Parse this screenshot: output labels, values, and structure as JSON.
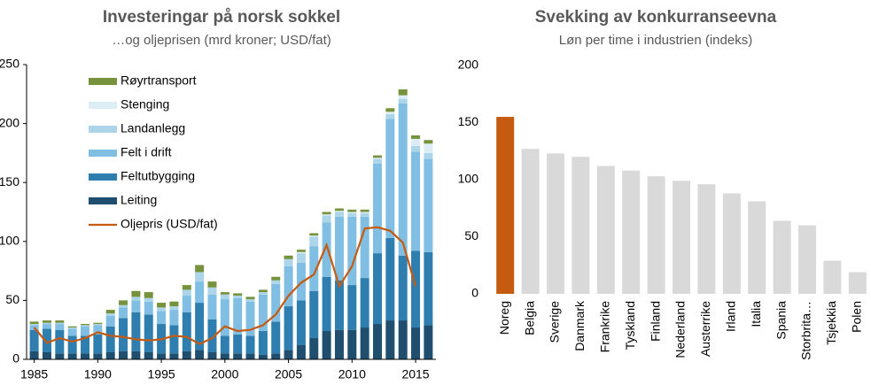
{
  "chart_data": [
    {
      "type": "bar",
      "stacked": true,
      "title": "Investeringar på norsk sokkel",
      "subtitle": "…og oljeprisen (mrd kroner; USD/fat)",
      "x": [
        1985,
        1986,
        1987,
        1988,
        1989,
        1990,
        1991,
        1992,
        1993,
        1994,
        1995,
        1996,
        1997,
        1998,
        1999,
        2000,
        2001,
        2002,
        2003,
        2004,
        2005,
        2006,
        2007,
        2008,
        2009,
        2010,
        2011,
        2012,
        2013,
        2014,
        2015,
        2016
      ],
      "xlim": [
        1984.4,
        2016.6
      ],
      "xticks": [
        1985,
        1990,
        1995,
        2000,
        2005,
        2010,
        2015
      ],
      "ylim": [
        0,
        250
      ],
      "yticks": [
        0,
        50,
        100,
        150,
        200,
        250
      ],
      "legend": "upper left",
      "series": [
        {
          "name": "Leiting",
          "color": "#1f4e6e",
          "values": [
            7,
            6,
            5,
            5,
            5,
            5,
            6,
            7,
            7,
            6,
            5,
            5,
            7,
            8,
            6,
            5,
            5,
            5,
            4,
            5,
            8,
            12,
            18,
            24,
            25,
            25,
            27,
            30,
            33,
            33,
            27,
            29
          ]
        },
        {
          "name": "Feltutbygging",
          "color": "#2e7eb0",
          "values": [
            18,
            20,
            20,
            15,
            15,
            16,
            22,
            28,
            33,
            32,
            25,
            24,
            33,
            40,
            28,
            15,
            16,
            15,
            20,
            27,
            37,
            38,
            40,
            46,
            42,
            38,
            42,
            60,
            70,
            55,
            65,
            62
          ]
        },
        {
          "name": "Felt i drift",
          "color": "#80bfe3",
          "values": [
            4,
            4,
            5,
            6,
            8,
            8,
            9,
            9,
            10,
            11,
            11,
            13,
            14,
            18,
            21,
            31,
            31,
            29,
            31,
            32,
            34,
            32,
            38,
            46,
            54,
            58,
            52,
            76,
            101,
            129,
            84,
            79
          ]
        },
        {
          "name": "Landanlegg",
          "color": "#acd5ea",
          "values": [
            1,
            1,
            1,
            1,
            1,
            1,
            2,
            2,
            3,
            3,
            3,
            3,
            5,
            8,
            6,
            4,
            2,
            2,
            2,
            3,
            6,
            8,
            8,
            6,
            4,
            3,
            3,
            4,
            4,
            4,
            5,
            5
          ]
        },
        {
          "name": "Stenging",
          "color": "#dcedf6",
          "values": [
            0,
            0,
            0,
            0,
            0,
            0,
            0,
            0,
            0,
            0,
            0,
            0,
            0,
            0,
            0,
            0,
            0,
            0,
            0,
            0,
            0,
            1,
            1,
            1,
            1,
            1,
            1,
            1,
            2,
            3,
            6,
            8
          ]
        },
        {
          "name": "Røyrtransport",
          "color": "#76923c",
          "values": [
            2,
            2,
            2,
            1,
            1,
            1,
            3,
            4,
            5,
            5,
            4,
            4,
            4,
            6,
            5,
            2,
            2,
            2,
            2,
            3,
            3,
            2,
            2,
            2,
            2,
            2,
            2,
            2,
            3,
            5,
            3,
            3
          ]
        },
        {
          "name": "Oljepris (USD/fat)",
          "type": "line",
          "color": "#c55a11",
          "values": [
            27,
            14,
            18,
            15,
            18,
            23,
            20,
            19,
            17,
            16,
            17,
            20,
            19,
            13,
            18,
            28,
            24,
            25,
            29,
            38,
            54,
            65,
            72,
            97,
            62,
            79,
            111,
            112,
            109,
            99,
            62,
            null
          ]
        }
      ]
    },
    {
      "type": "bar",
      "title": "Svekking av konkurranseevna",
      "subtitle": "Løn per time i industrien (indeks)",
      "categories": [
        "Noreg",
        "Belgia",
        "Sverige",
        "Danmark",
        "Frankrike",
        "Tyskland",
        "Finland",
        "Nederland",
        "Austerrike",
        "Irland",
        "Italia",
        "Spania",
        "Storbrita…",
        "Tsjekkia",
        "Polen"
      ],
      "values": [
        155,
        127,
        123,
        120,
        112,
        108,
        103,
        99,
        96,
        88,
        81,
        64,
        60,
        29,
        19
      ],
      "colors": [
        "#c55a11",
        "#d9d9d9",
        "#d9d9d9",
        "#d9d9d9",
        "#d9d9d9",
        "#d9d9d9",
        "#d9d9d9",
        "#d9d9d9",
        "#d9d9d9",
        "#d9d9d9",
        "#d9d9d9",
        "#d9d9d9",
        "#d9d9d9",
        "#d9d9d9",
        "#d9d9d9"
      ],
      "ylim": [
        0,
        200
      ],
      "yticks": [
        0,
        50,
        100,
        150,
        200
      ]
    }
  ]
}
